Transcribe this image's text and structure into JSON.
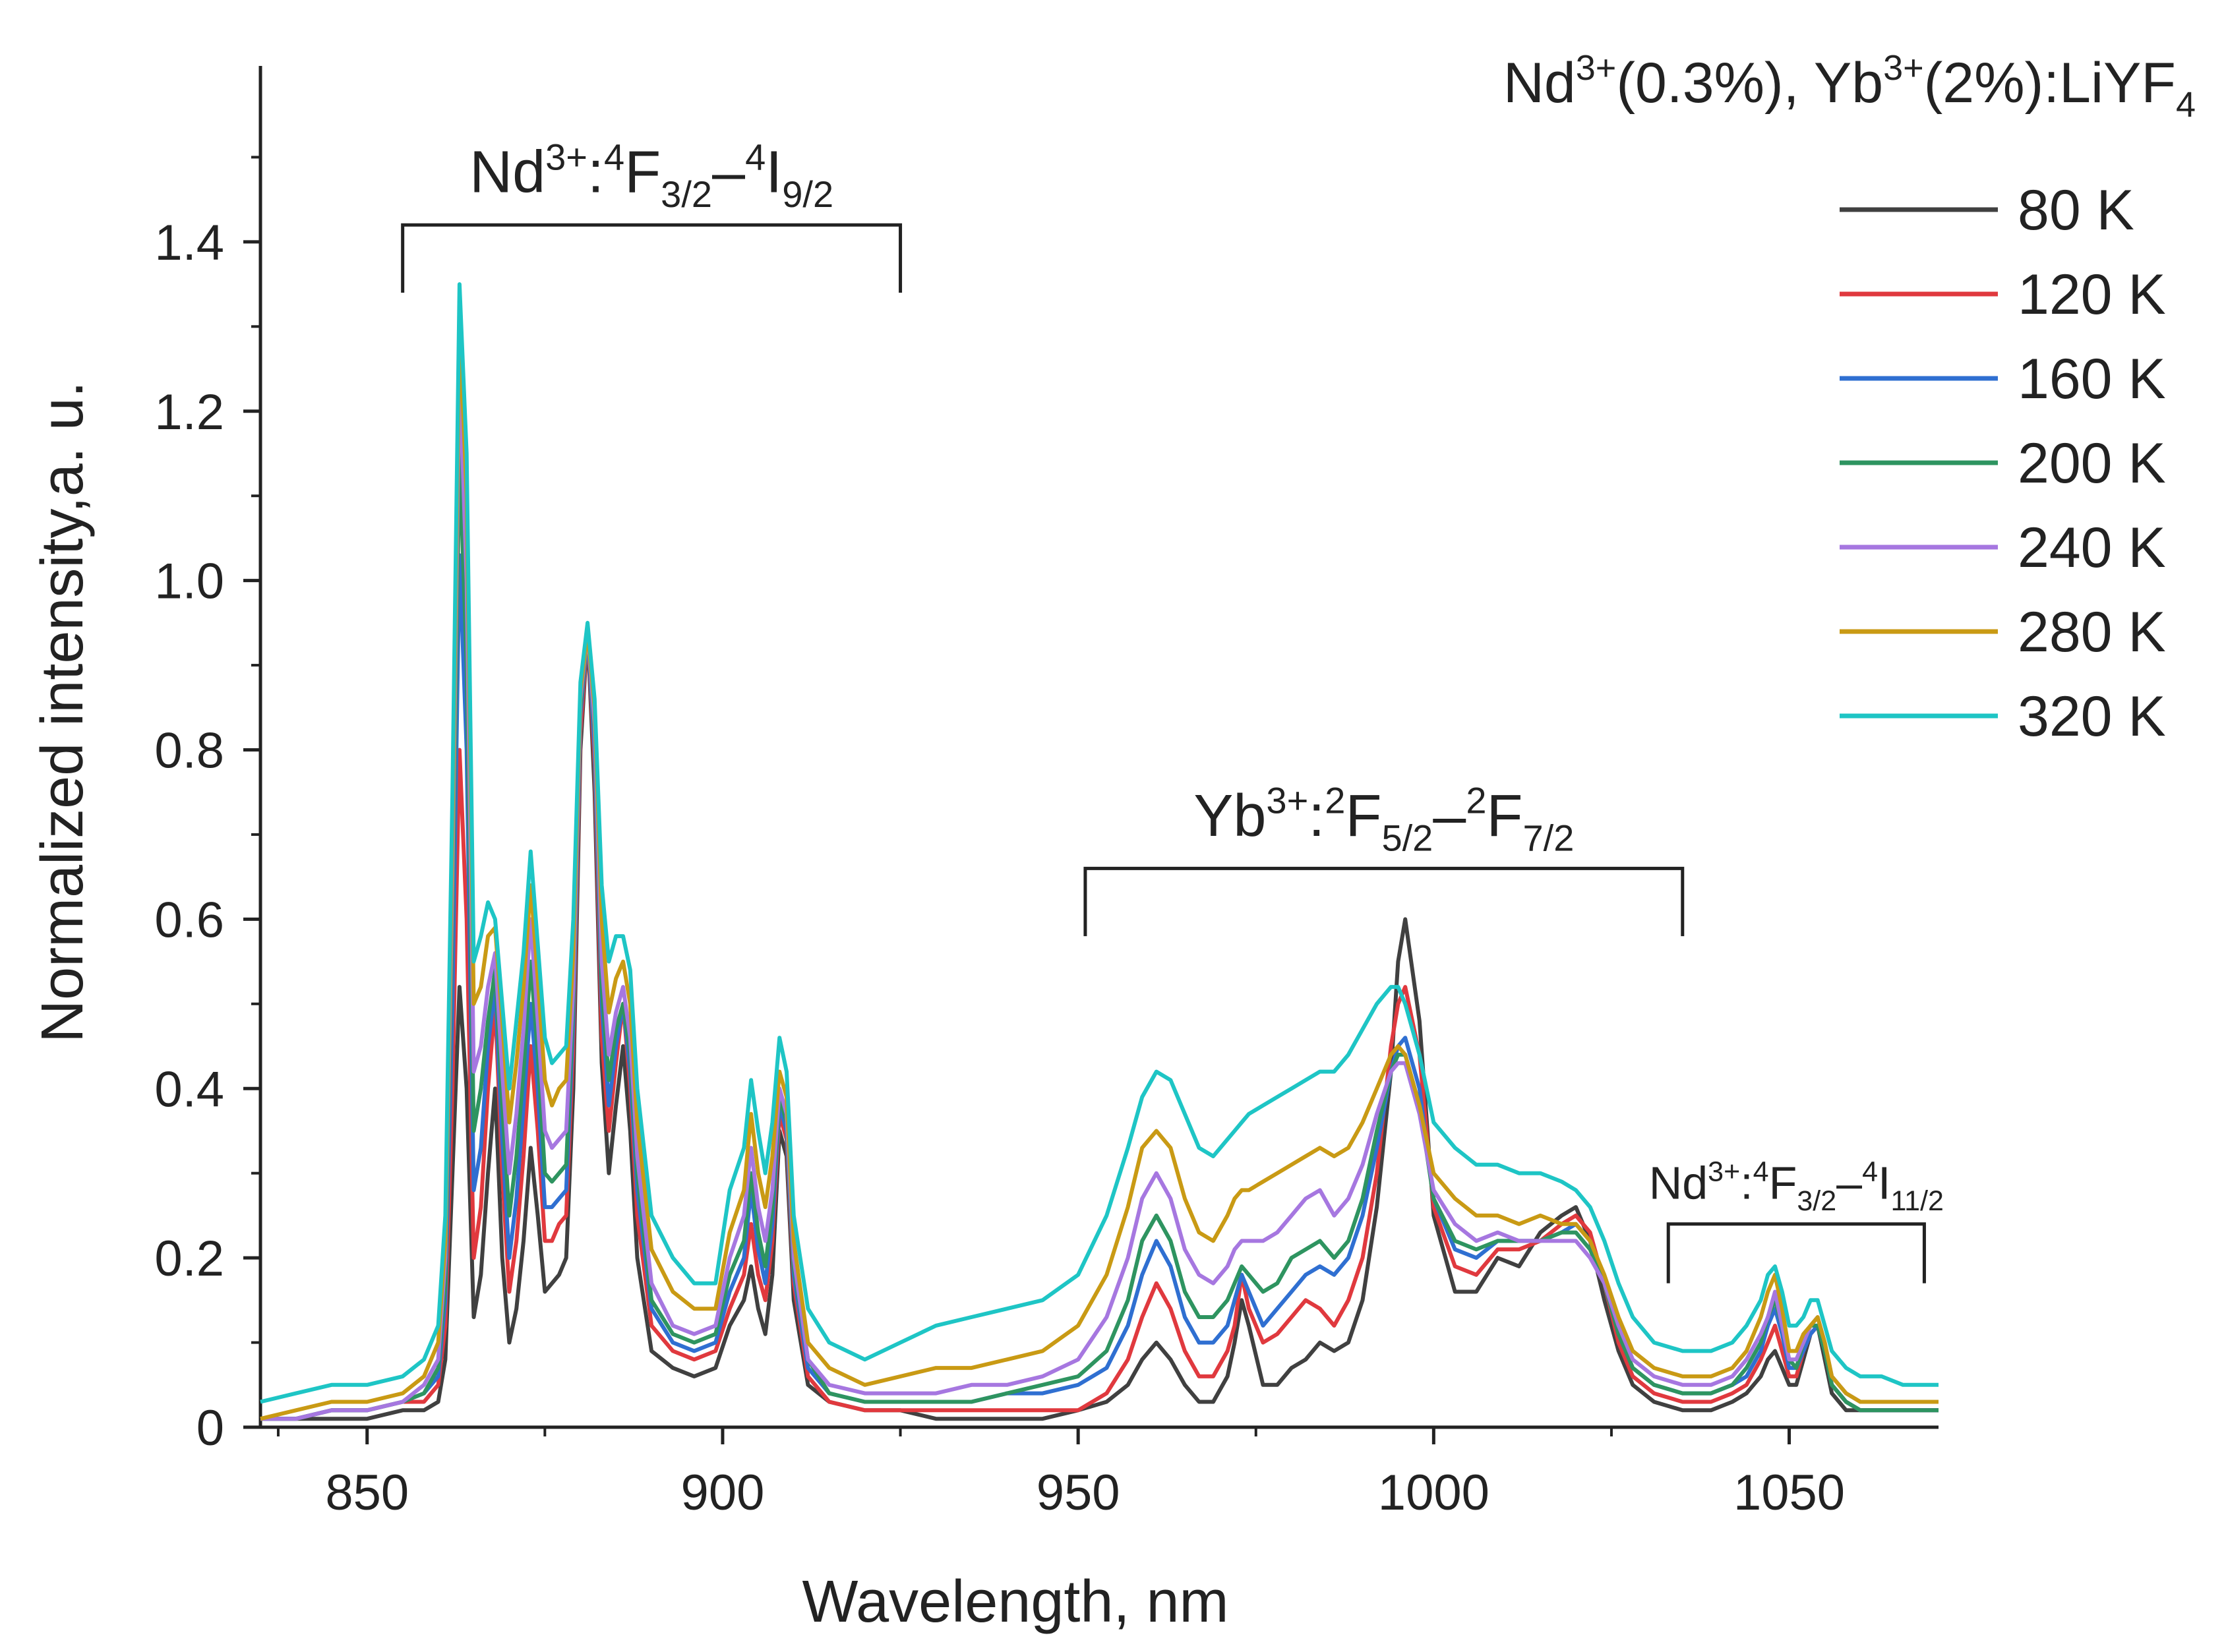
{
  "chart_data": {
    "type": "line",
    "title": "Nd3+(0.3%), Yb3+(2%):LiYF4",
    "title_parts": {
      "a": "Nd",
      "a_sup": "3+",
      "b": "(0.3%), Yb",
      "b_sup": "3+",
      "c": "(2%):LiYF",
      "c_sub": "4"
    },
    "xlabel": "Wavelength, nm",
    "ylabel": "Normalized intensity,a. u.",
    "xlim": [
      835,
      1071
    ],
    "ylim": [
      0,
      1.6
    ],
    "x_ticks": [
      850,
      900,
      950,
      1000,
      1050
    ],
    "x_tick_labels": [
      "850",
      "900",
      "950",
      "1000",
      "1050"
    ],
    "y_ticks": [
      0,
      0.2,
      0.4,
      0.6,
      0.8,
      1.0,
      1.2,
      1.4
    ],
    "y_tick_labels": [
      "0",
      "0.2",
      "0.4",
      "0.6",
      "0.8",
      "1.0",
      "1.2",
      "1.4"
    ],
    "grid": false,
    "legend_position": "top-right",
    "annotations": [
      {
        "parts": [
          "Nd",
          "3+",
          ":",
          "4",
          "F",
          "3/2",
          "–",
          "4",
          "I",
          "9/2"
        ],
        "x_range": [
          855,
          925
        ],
        "bracket_y": 1.42,
        "bracket_bottom": 1.34
      },
      {
        "parts": [
          "Yb",
          "3+",
          ":",
          "2",
          "F",
          "5/2",
          "–",
          "2",
          "F",
          "7/2"
        ],
        "x_range": [
          951,
          1035
        ],
        "bracket_y": 0.66,
        "bracket_bottom": 0.58
      },
      {
        "parts": [
          "Nd",
          "3+",
          ":",
          "4",
          "F",
          "3/2",
          "–",
          "4",
          "I",
          "11/2"
        ],
        "x_range": [
          1033,
          1069
        ],
        "bracket_y": 0.24,
        "bracket_bottom": 0.17
      }
    ],
    "x": [
      835,
      840,
      845,
      850,
      855,
      858,
      860,
      861,
      862,
      863,
      864,
      865,
      866,
      867,
      868,
      869,
      870,
      871,
      872,
      873,
      874,
      875,
      876,
      877,
      878,
      879,
      880,
      881,
      882,
      883,
      884,
      885,
      886,
      887,
      888,
      890,
      893,
      896,
      899,
      901,
      903,
      904,
      905,
      906,
      907,
      908,
      909,
      910,
      912,
      915,
      920,
      925,
      930,
      935,
      940,
      945,
      950,
      954,
      957,
      959,
      961,
      963,
      965,
      967,
      969,
      971,
      972,
      973,
      974,
      976,
      978,
      980,
      982,
      984,
      986,
      988,
      990,
      992,
      994,
      995,
      996,
      998,
      1000,
      1003,
      1006,
      1009,
      1012,
      1015,
      1018,
      1020,
      1022,
      1024,
      1026,
      1028,
      1031,
      1035,
      1039,
      1042,
      1044,
      1046,
      1047,
      1048,
      1049,
      1050,
      1051,
      1052,
      1053,
      1054,
      1055,
      1056,
      1058,
      1060,
      1063,
      1066,
      1071
    ],
    "series": [
      {
        "name": "80 K",
        "color": "#404040",
        "values": [
          0.01,
          0.01,
          0.01,
          0.01,
          0.02,
          0.02,
          0.03,
          0.08,
          0.3,
          0.52,
          0.4,
          0.13,
          0.18,
          0.3,
          0.4,
          0.2,
          0.1,
          0.14,
          0.22,
          0.33,
          0.25,
          0.16,
          0.17,
          0.18,
          0.2,
          0.4,
          0.8,
          0.94,
          0.75,
          0.43,
          0.3,
          0.38,
          0.45,
          0.35,
          0.2,
          0.09,
          0.07,
          0.06,
          0.07,
          0.12,
          0.15,
          0.19,
          0.14,
          0.11,
          0.18,
          0.35,
          0.32,
          0.15,
          0.05,
          0.03,
          0.02,
          0.02,
          0.01,
          0.01,
          0.01,
          0.01,
          0.02,
          0.03,
          0.05,
          0.08,
          0.1,
          0.08,
          0.05,
          0.03,
          0.03,
          0.06,
          0.1,
          0.15,
          0.12,
          0.05,
          0.05,
          0.07,
          0.08,
          0.1,
          0.09,
          0.1,
          0.15,
          0.26,
          0.42,
          0.55,
          0.6,
          0.48,
          0.25,
          0.16,
          0.16,
          0.2,
          0.19,
          0.23,
          0.25,
          0.26,
          0.22,
          0.15,
          0.09,
          0.05,
          0.03,
          0.02,
          0.02,
          0.03,
          0.04,
          0.06,
          0.08,
          0.09,
          0.07,
          0.05,
          0.05,
          0.08,
          0.11,
          0.12,
          0.08,
          0.04,
          0.02,
          0.02,
          0.02,
          0.02,
          0.02
        ]
      },
      {
        "name": "120 K",
        "color": "#e0393e",
        "values": [
          0.01,
          0.01,
          0.02,
          0.02,
          0.03,
          0.03,
          0.05,
          0.12,
          0.4,
          0.8,
          0.6,
          0.2,
          0.26,
          0.4,
          0.5,
          0.3,
          0.16,
          0.22,
          0.32,
          0.45,
          0.35,
          0.22,
          0.22,
          0.24,
          0.25,
          0.45,
          0.82,
          0.94,
          0.78,
          0.46,
          0.35,
          0.43,
          0.5,
          0.4,
          0.25,
          0.12,
          0.09,
          0.08,
          0.09,
          0.14,
          0.18,
          0.24,
          0.18,
          0.15,
          0.22,
          0.37,
          0.34,
          0.17,
          0.06,
          0.03,
          0.02,
          0.02,
          0.02,
          0.02,
          0.02,
          0.02,
          0.02,
          0.04,
          0.08,
          0.13,
          0.17,
          0.14,
          0.09,
          0.06,
          0.06,
          0.09,
          0.12,
          0.18,
          0.14,
          0.1,
          0.11,
          0.13,
          0.15,
          0.14,
          0.12,
          0.15,
          0.2,
          0.3,
          0.45,
          0.5,
          0.52,
          0.44,
          0.26,
          0.19,
          0.18,
          0.21,
          0.21,
          0.22,
          0.24,
          0.25,
          0.23,
          0.17,
          0.1,
          0.06,
          0.04,
          0.03,
          0.03,
          0.04,
          0.05,
          0.08,
          0.1,
          0.12,
          0.09,
          0.06,
          0.06,
          0.09,
          0.11,
          0.12,
          0.09,
          0.05,
          0.03,
          0.02,
          0.02,
          0.02,
          0.02
        ]
      },
      {
        "name": "160 K",
        "color": "#2f6fd1",
        "values": [
          0.01,
          0.01,
          0.02,
          0.02,
          0.03,
          0.04,
          0.06,
          0.15,
          0.5,
          1.03,
          0.8,
          0.28,
          0.33,
          0.45,
          0.52,
          0.34,
          0.2,
          0.27,
          0.38,
          0.5,
          0.4,
          0.26,
          0.26,
          0.27,
          0.28,
          0.48,
          0.84,
          0.94,
          0.8,
          0.5,
          0.38,
          0.45,
          0.5,
          0.42,
          0.28,
          0.14,
          0.1,
          0.09,
          0.1,
          0.16,
          0.2,
          0.28,
          0.21,
          0.17,
          0.24,
          0.38,
          0.35,
          0.18,
          0.07,
          0.04,
          0.03,
          0.03,
          0.03,
          0.03,
          0.04,
          0.04,
          0.05,
          0.07,
          0.12,
          0.18,
          0.22,
          0.19,
          0.13,
          0.1,
          0.1,
          0.12,
          0.15,
          0.18,
          0.16,
          0.12,
          0.14,
          0.16,
          0.18,
          0.19,
          0.18,
          0.2,
          0.25,
          0.33,
          0.42,
          0.45,
          0.46,
          0.4,
          0.27,
          0.21,
          0.2,
          0.22,
          0.22,
          0.22,
          0.23,
          0.24,
          0.22,
          0.17,
          0.11,
          0.07,
          0.05,
          0.04,
          0.04,
          0.05,
          0.06,
          0.09,
          0.12,
          0.14,
          0.11,
          0.07,
          0.07,
          0.09,
          0.11,
          0.12,
          0.09,
          0.05,
          0.03,
          0.02,
          0.02,
          0.02,
          0.02
        ]
      },
      {
        "name": "200 K",
        "color": "#2e9460",
        "values": [
          0.01,
          0.01,
          0.02,
          0.02,
          0.03,
          0.04,
          0.07,
          0.17,
          0.6,
          1.15,
          0.9,
          0.35,
          0.4,
          0.48,
          0.54,
          0.38,
          0.25,
          0.32,
          0.42,
          0.55,
          0.44,
          0.3,
          0.29,
          0.3,
          0.31,
          0.5,
          0.85,
          0.94,
          0.82,
          0.52,
          0.41,
          0.47,
          0.5,
          0.44,
          0.3,
          0.15,
          0.11,
          0.1,
          0.11,
          0.18,
          0.22,
          0.3,
          0.23,
          0.19,
          0.26,
          0.39,
          0.36,
          0.19,
          0.08,
          0.04,
          0.03,
          0.03,
          0.03,
          0.03,
          0.04,
          0.05,
          0.06,
          0.09,
          0.15,
          0.22,
          0.25,
          0.22,
          0.16,
          0.13,
          0.13,
          0.15,
          0.17,
          0.19,
          0.18,
          0.16,
          0.17,
          0.2,
          0.21,
          0.22,
          0.2,
          0.22,
          0.27,
          0.35,
          0.42,
          0.44,
          0.44,
          0.38,
          0.27,
          0.22,
          0.21,
          0.22,
          0.22,
          0.22,
          0.23,
          0.23,
          0.21,
          0.17,
          0.11,
          0.07,
          0.05,
          0.04,
          0.04,
          0.05,
          0.07,
          0.1,
          0.13,
          0.15,
          0.12,
          0.08,
          0.07,
          0.1,
          0.12,
          0.12,
          0.09,
          0.05,
          0.03,
          0.02,
          0.02,
          0.02,
          0.02
        ]
      },
      {
        "name": "240 K",
        "color": "#a677e0",
        "values": [
          0.01,
          0.01,
          0.02,
          0.02,
          0.03,
          0.05,
          0.08,
          0.2,
          0.65,
          1.25,
          1.0,
          0.42,
          0.45,
          0.52,
          0.56,
          0.42,
          0.3,
          0.37,
          0.47,
          0.6,
          0.48,
          0.35,
          0.33,
          0.34,
          0.35,
          0.52,
          0.86,
          0.94,
          0.83,
          0.55,
          0.44,
          0.49,
          0.52,
          0.46,
          0.32,
          0.17,
          0.12,
          0.11,
          0.12,
          0.2,
          0.25,
          0.33,
          0.26,
          0.22,
          0.28,
          0.4,
          0.37,
          0.2,
          0.08,
          0.05,
          0.04,
          0.04,
          0.04,
          0.05,
          0.05,
          0.06,
          0.08,
          0.13,
          0.2,
          0.27,
          0.3,
          0.27,
          0.21,
          0.18,
          0.17,
          0.19,
          0.21,
          0.22,
          0.22,
          0.22,
          0.23,
          0.25,
          0.27,
          0.28,
          0.25,
          0.27,
          0.31,
          0.37,
          0.42,
          0.43,
          0.43,
          0.37,
          0.28,
          0.24,
          0.22,
          0.23,
          0.22,
          0.22,
          0.22,
          0.22,
          0.2,
          0.17,
          0.12,
          0.08,
          0.06,
          0.05,
          0.05,
          0.06,
          0.08,
          0.11,
          0.13,
          0.16,
          0.12,
          0.08,
          0.08,
          0.1,
          0.12,
          0.13,
          0.1,
          0.06,
          0.04,
          0.03,
          0.03,
          0.03,
          0.03
        ]
      },
      {
        "name": "280 K",
        "color": "#c99a14",
        "values": [
          0.01,
          0.02,
          0.03,
          0.03,
          0.04,
          0.06,
          0.1,
          0.22,
          0.7,
          1.3,
          1.1,
          0.5,
          0.52,
          0.58,
          0.59,
          0.48,
          0.36,
          0.43,
          0.52,
          0.64,
          0.53,
          0.41,
          0.38,
          0.4,
          0.41,
          0.56,
          0.87,
          0.94,
          0.85,
          0.6,
          0.49,
          0.53,
          0.55,
          0.5,
          0.36,
          0.21,
          0.16,
          0.14,
          0.14,
          0.23,
          0.28,
          0.37,
          0.3,
          0.26,
          0.32,
          0.42,
          0.39,
          0.22,
          0.1,
          0.07,
          0.05,
          0.06,
          0.07,
          0.07,
          0.08,
          0.09,
          0.12,
          0.18,
          0.26,
          0.33,
          0.35,
          0.33,
          0.27,
          0.23,
          0.22,
          0.25,
          0.27,
          0.28,
          0.28,
          0.29,
          0.3,
          0.31,
          0.32,
          0.33,
          0.32,
          0.33,
          0.36,
          0.4,
          0.44,
          0.45,
          0.44,
          0.38,
          0.3,
          0.27,
          0.25,
          0.25,
          0.24,
          0.25,
          0.24,
          0.24,
          0.22,
          0.18,
          0.13,
          0.09,
          0.07,
          0.06,
          0.06,
          0.07,
          0.09,
          0.13,
          0.16,
          0.18,
          0.14,
          0.09,
          0.09,
          0.11,
          0.12,
          0.13,
          0.1,
          0.06,
          0.04,
          0.03,
          0.03,
          0.03,
          0.03
        ]
      },
      {
        "name": "320 K",
        "color": "#1ec5c5",
        "values": [
          0.03,
          0.04,
          0.05,
          0.05,
          0.06,
          0.08,
          0.12,
          0.25,
          0.75,
          1.35,
          1.15,
          0.55,
          0.58,
          0.62,
          0.6,
          0.5,
          0.4,
          0.48,
          0.56,
          0.68,
          0.57,
          0.46,
          0.43,
          0.44,
          0.45,
          0.6,
          0.88,
          0.95,
          0.86,
          0.64,
          0.55,
          0.58,
          0.58,
          0.54,
          0.4,
          0.25,
          0.2,
          0.17,
          0.17,
          0.28,
          0.33,
          0.41,
          0.35,
          0.3,
          0.36,
          0.46,
          0.42,
          0.25,
          0.14,
          0.1,
          0.08,
          0.1,
          0.12,
          0.13,
          0.14,
          0.15,
          0.18,
          0.25,
          0.33,
          0.39,
          0.42,
          0.41,
          0.37,
          0.33,
          0.32,
          0.34,
          0.35,
          0.36,
          0.37,
          0.38,
          0.39,
          0.4,
          0.41,
          0.42,
          0.42,
          0.44,
          0.47,
          0.5,
          0.52,
          0.52,
          0.5,
          0.44,
          0.36,
          0.33,
          0.31,
          0.31,
          0.3,
          0.3,
          0.29,
          0.28,
          0.26,
          0.22,
          0.17,
          0.13,
          0.1,
          0.09,
          0.09,
          0.1,
          0.12,
          0.15,
          0.18,
          0.19,
          0.16,
          0.12,
          0.12,
          0.13,
          0.15,
          0.15,
          0.12,
          0.09,
          0.07,
          0.06,
          0.06,
          0.05,
          0.05
        ]
      }
    ]
  }
}
